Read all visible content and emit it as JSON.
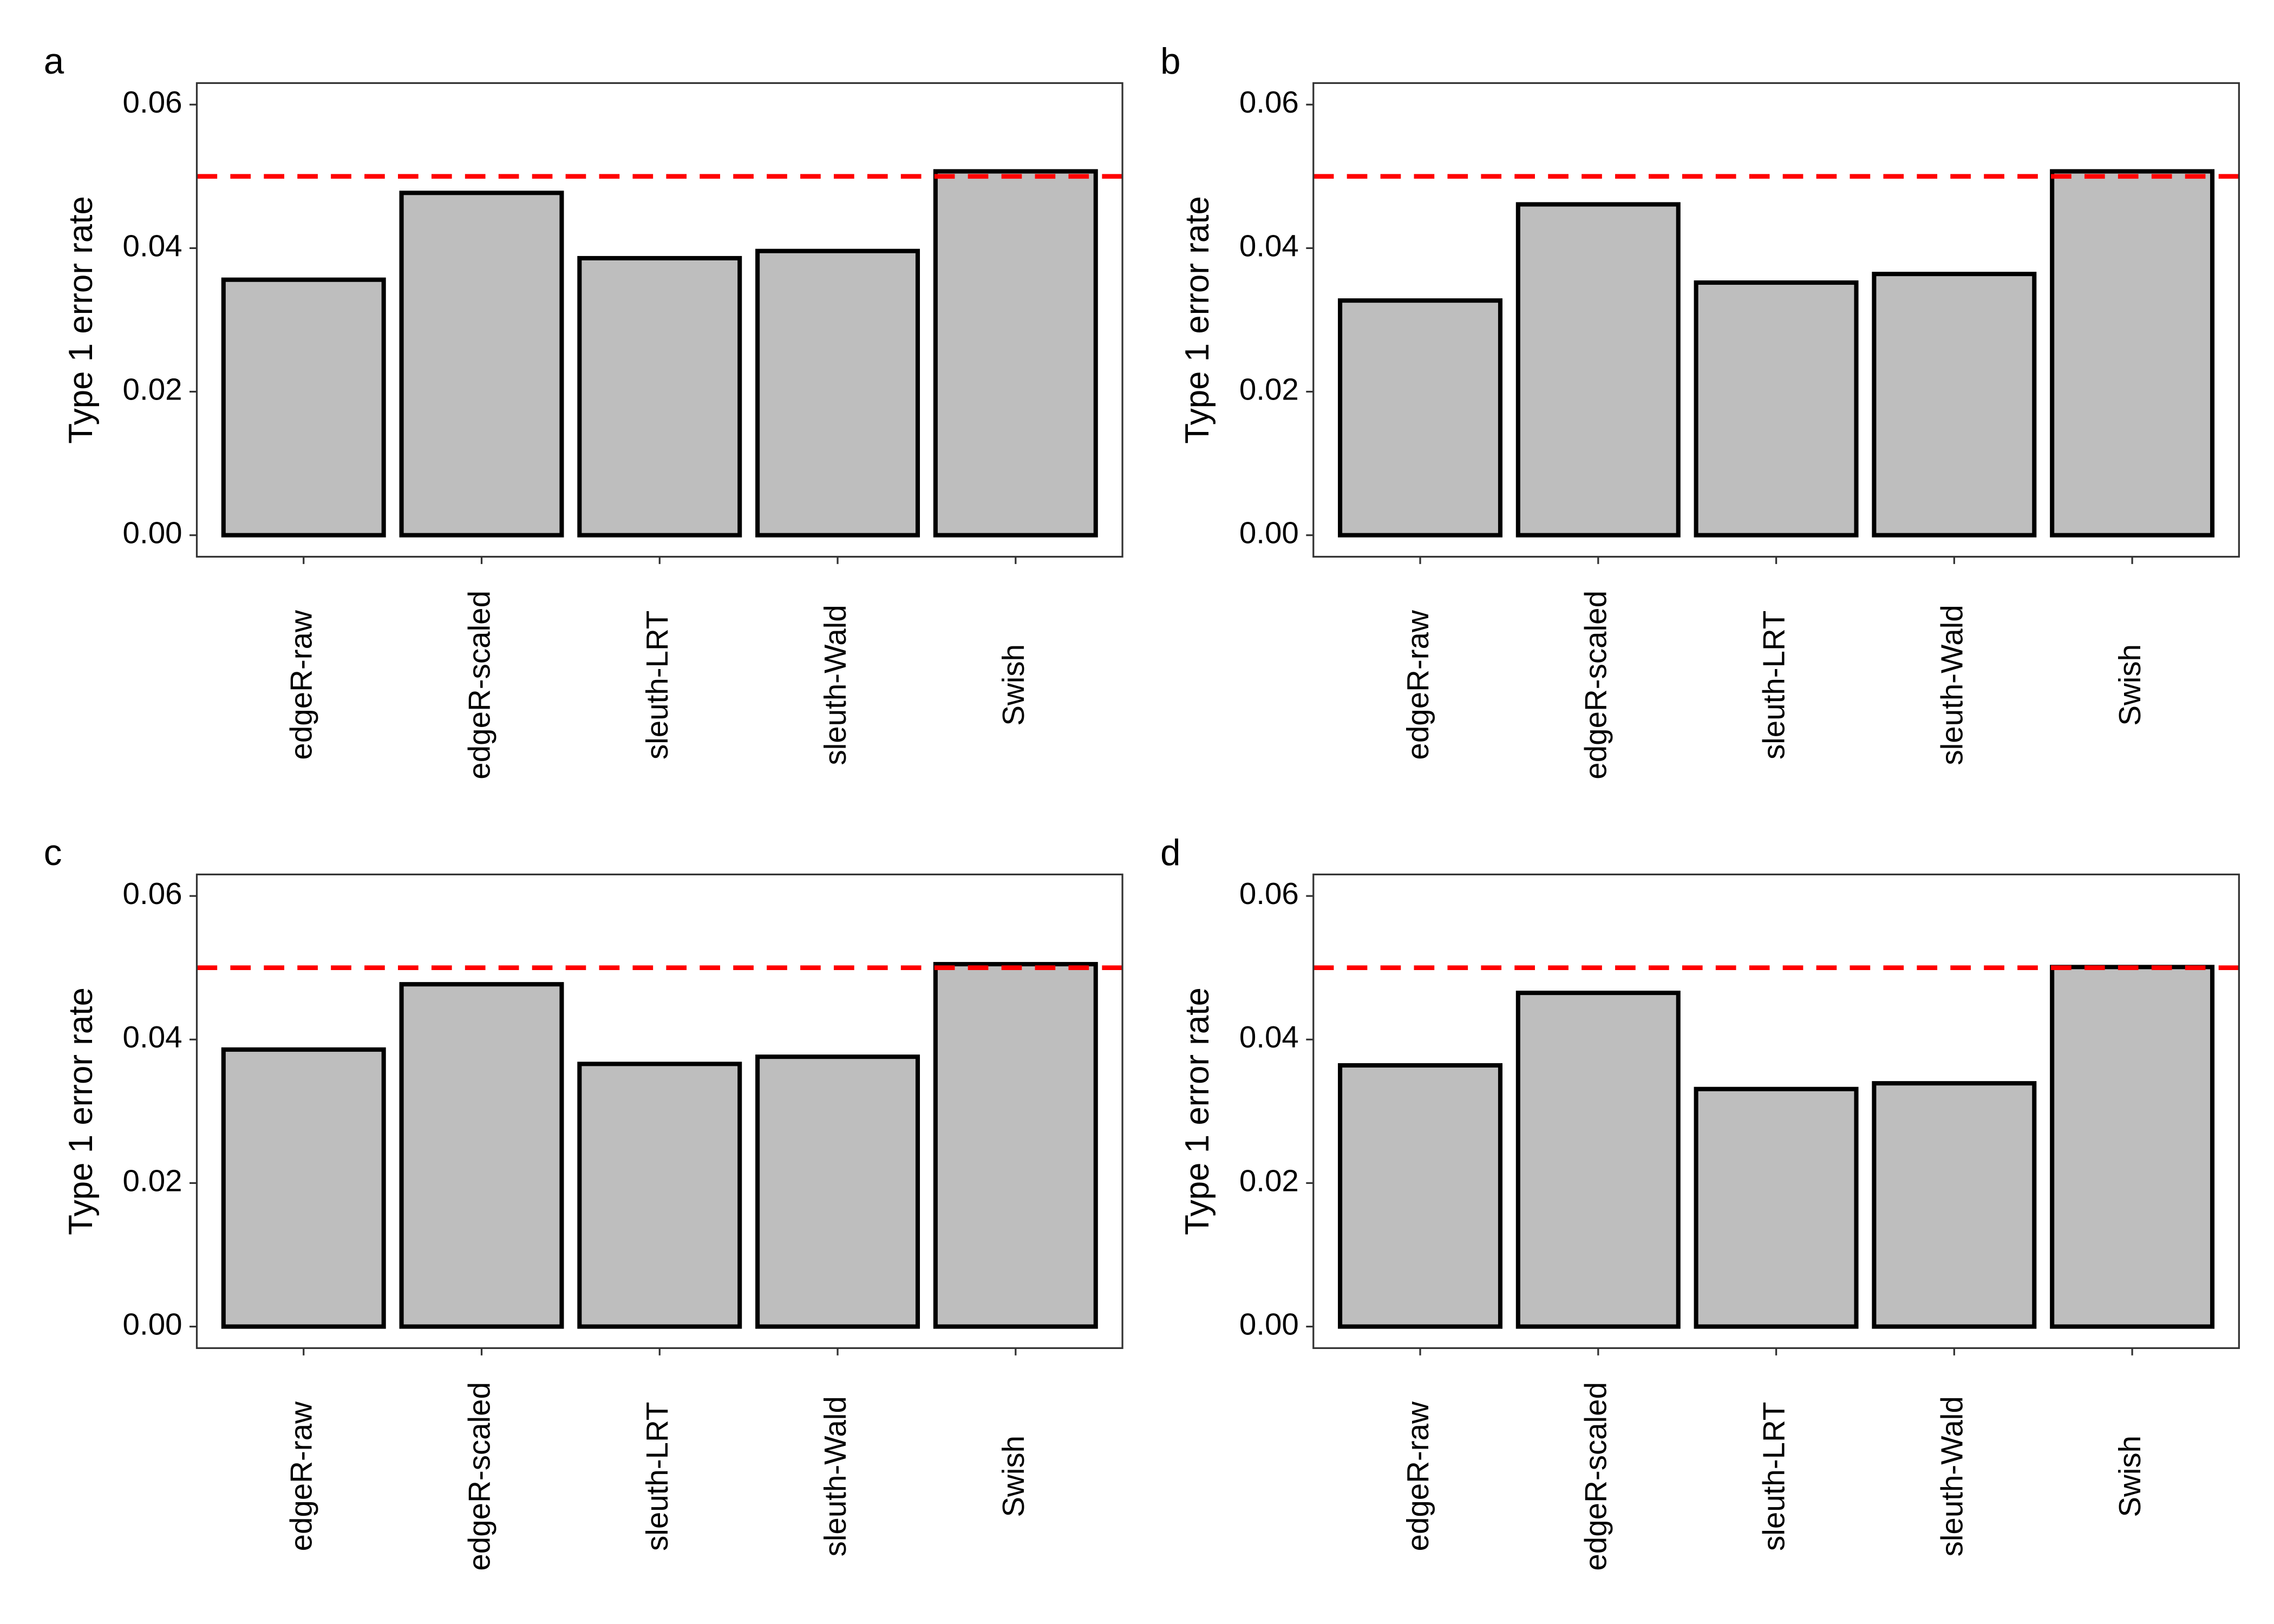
{
  "chart_data": [
    {
      "type": "bar",
      "panel_label": "a",
      "ylabel": "Type 1 error rate",
      "categories": [
        "edgeR-raw",
        "edgeR-scaled",
        "sleuth-LRT",
        "sleuth-Wald",
        "Swish"
      ],
      "values": [
        0.0356,
        0.0477,
        0.0386,
        0.0396,
        0.0507
      ],
      "color": "#bebebe",
      "ylim": [
        -0.003,
        0.063
      ],
      "yticks": [
        {
          "value": 0,
          "label": "0.00"
        },
        0.02,
        0.04,
        0.06
      ],
      "reference_line": 0.05,
      "reference_color": "#ff0000"
    },
    {
      "type": "bar",
      "panel_label": "b",
      "ylabel": "Type 1 error rate",
      "categories": [
        "edgeR-raw",
        "edgeR-scaled",
        "sleuth-LRT",
        "sleuth-Wald",
        "Swish"
      ],
      "values": [
        0.0327,
        0.0461,
        0.0352,
        0.0364,
        0.0507
      ],
      "color": "#bebebe",
      "ylim": [
        -0.003,
        0.063
      ],
      "yticks": [
        {
          "value": 0,
          "label": "0.00"
        },
        0.02,
        0.04,
        0.06
      ],
      "reference_line": 0.05,
      "reference_color": "#ff0000"
    },
    {
      "type": "bar",
      "panel_label": "c",
      "ylabel": "Type 1 error rate",
      "categories": [
        "edgeR-raw",
        "edgeR-scaled",
        "sleuth-LRT",
        "sleuth-Wald",
        "Swish"
      ],
      "values": [
        0.0386,
        0.0477,
        0.0366,
        0.0376,
        0.0505
      ],
      "color": "#bebebe",
      "ylim": [
        -0.003,
        0.063
      ],
      "yticks": [
        {
          "value": 0,
          "label": "0.00"
        },
        0.02,
        0.04,
        0.06
      ],
      "reference_line": 0.05,
      "reference_color": "#ff0000"
    },
    {
      "type": "bar",
      "panel_label": "d",
      "ylabel": "Type 1 error rate",
      "categories": [
        "edgeR-raw",
        "edgeR-scaled",
        "sleuth-LRT",
        "sleuth-Wald",
        "Swish"
      ],
      "values": [
        0.0364,
        0.0465,
        0.0331,
        0.0339,
        0.0501
      ],
      "color": "#bebebe",
      "ylim": [
        -0.003,
        0.063
      ],
      "yticks": [
        {
          "value": 0,
          "label": "0.00"
        },
        0.02,
        0.04,
        0.06
      ],
      "reference_line": 0.05,
      "reference_color": "#ff0000"
    }
  ]
}
